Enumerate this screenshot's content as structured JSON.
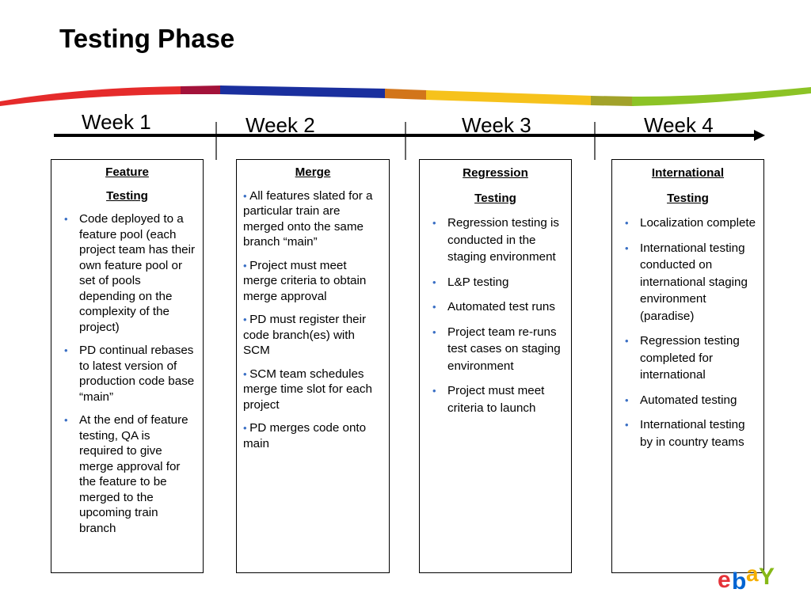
{
  "page": {
    "title": "Testing Phase"
  },
  "timeline": {
    "weeks": [
      "Week 1",
      "Week 2",
      "Week 3",
      "Week 4"
    ]
  },
  "columns": [
    {
      "title_lines": [
        "Feature",
        "Testing"
      ],
      "style": "list",
      "items": [
        "Code deployed to a feature pool (each project team has their own feature pool or set of pools depending on the complexity of the project)",
        "PD continual rebases to latest version of production code base “main”",
        "At the end of feature testing, QA is required to give merge approval for the feature to be merged to the upcoming train branch"
      ]
    },
    {
      "title_lines": [
        "Merge"
      ],
      "style": "inline",
      "items": [
        "All features slated for a particular train are merged onto the same branch “main”",
        "Project must meet merge criteria to obtain merge approval",
        "PD must register their code branch(es) with SCM",
        "SCM team schedules merge time slot for each project",
        "PD merges code onto main"
      ]
    },
    {
      "title_lines": [
        "Regression",
        "Testing"
      ],
      "style": "list",
      "items": [
        "Regression testing is conducted in the staging environment",
        "L&P testing",
        "Automated test runs",
        "Project team re-runs test cases on staging environment",
        "Project must meet criteria to launch"
      ]
    },
    {
      "title_lines": [
        "International",
        "Testing"
      ],
      "style": "list",
      "items": [
        "Localization complete",
        "International testing conducted on international staging environment (paradise)",
        "Regression testing completed for international",
        "Automated testing",
        "International testing by in country teams"
      ]
    }
  ],
  "logo": {
    "letters": [
      "e",
      "b",
      "a",
      "y"
    ],
    "colors": [
      "#e53238",
      "#0064d2",
      "#f5af02",
      "#86b817"
    ]
  },
  "colors": {
    "bullet": "#3a6fc4",
    "arrow": "#000000"
  }
}
